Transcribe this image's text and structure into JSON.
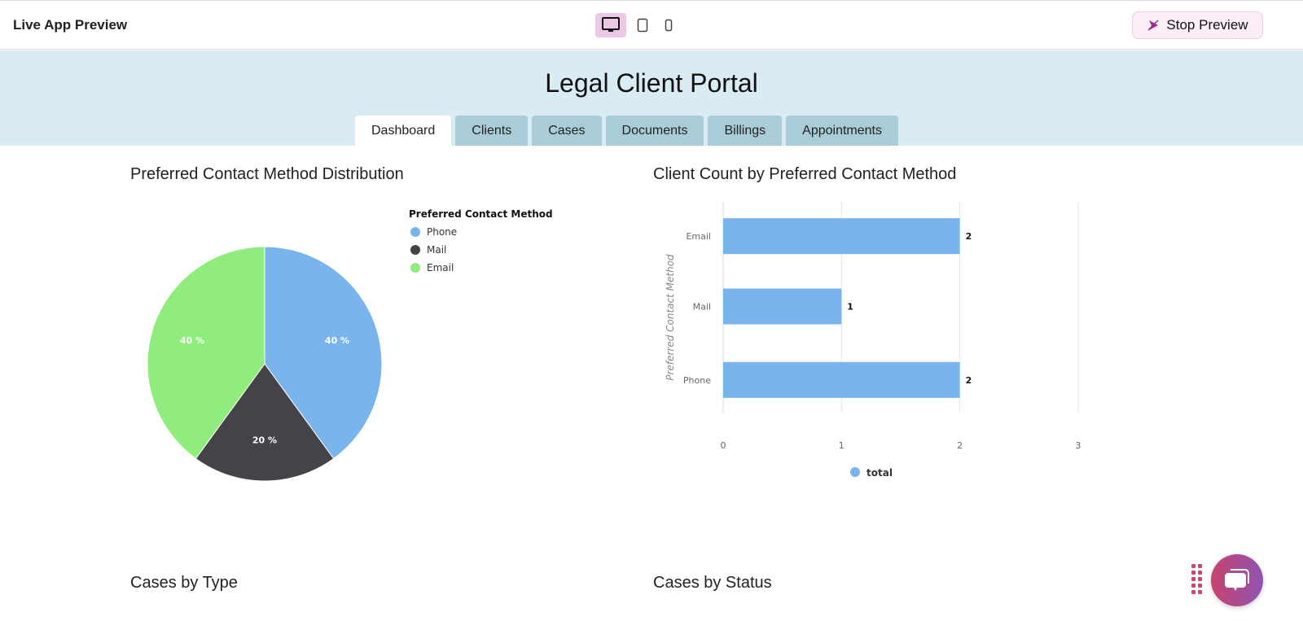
{
  "topbar": {
    "title": "Live App Preview",
    "devices": [
      "desktop-icon",
      "tablet-icon",
      "mobile-icon"
    ],
    "stop_label": "Stop Preview"
  },
  "header": {
    "title": "Legal Client Portal",
    "tabs": [
      {
        "label": "Dashboard",
        "active": true
      },
      {
        "label": "Clients"
      },
      {
        "label": "Cases"
      },
      {
        "label": "Documents"
      },
      {
        "label": "Billings"
      },
      {
        "label": "Appointments"
      }
    ]
  },
  "cards": {
    "pie_title": "Preferred Contact Method Distribution",
    "bar_title": "Client Count by Preferred Contact Method",
    "cases_type_title": "Cases by Type",
    "cases_status_title": "Cases by Status"
  },
  "colors": {
    "phone": "#7ab4ec",
    "mail": "#434348",
    "email": "#90ed7d"
  },
  "chart_data": [
    {
      "type": "pie",
      "legend_title": "Preferred Contact Method",
      "legend_placement": "top-right",
      "categories": [
        "Phone",
        "Mail",
        "Email"
      ],
      "values": [
        40,
        20,
        40
      ],
      "labels": [
        "40 %",
        "20 %",
        "40 %"
      ]
    },
    {
      "type": "bar",
      "orientation": "horizontal",
      "categories": [
        "Email",
        "Mail",
        "Phone"
      ],
      "series": [
        {
          "name": "total",
          "values": [
            2,
            1,
            2
          ]
        }
      ],
      "ylabel": "Preferred Contact Method",
      "xlim": [
        0,
        3
      ],
      "xticks": [
        "0",
        "1",
        "2",
        "3"
      ],
      "grid": true,
      "legend_placement": "bottom"
    }
  ]
}
